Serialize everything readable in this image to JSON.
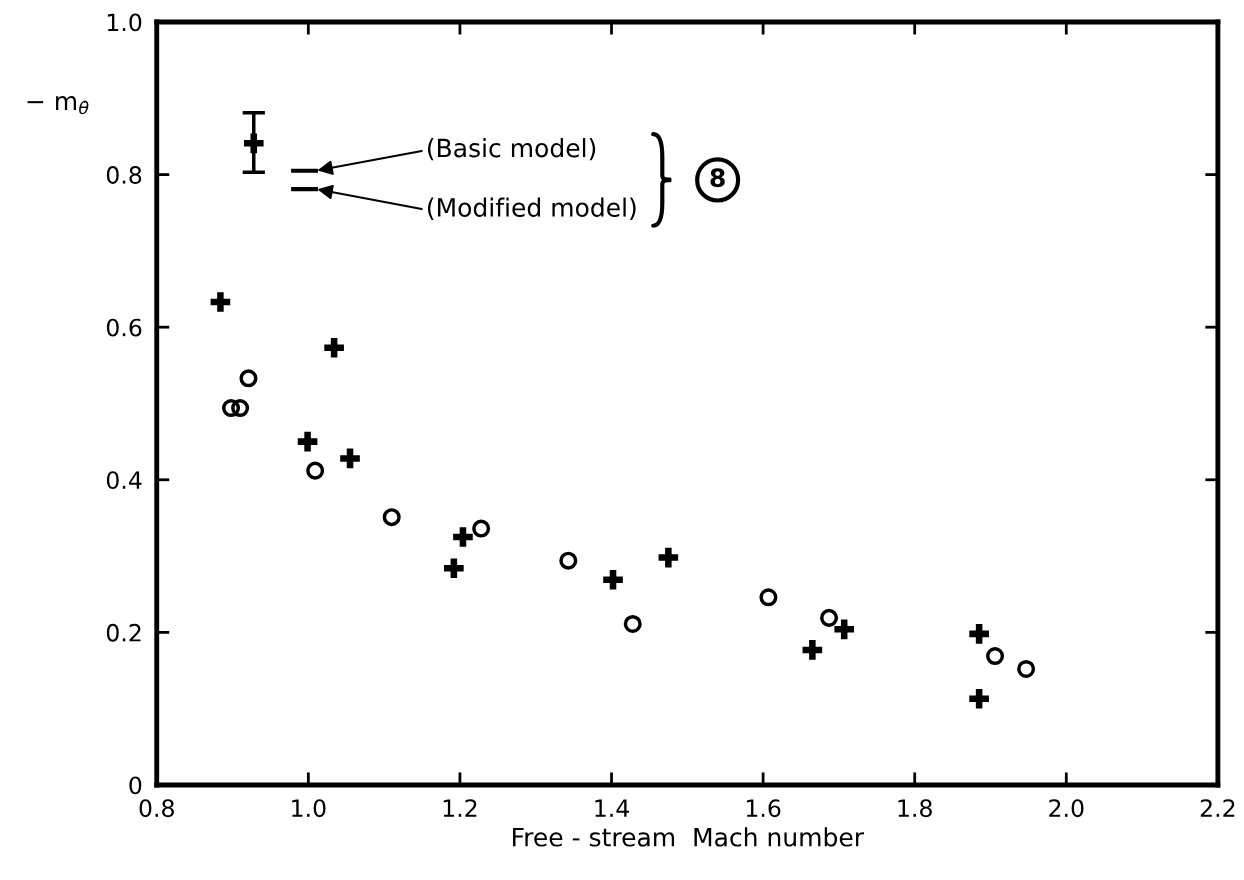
{
  "chart_data": {
    "type": "scatter",
    "xlabel": "Free - stream  Mach number",
    "ylabel": "− m$_{θ̇}$",
    "xlim": [
      0.8,
      2.2
    ],
    "ylim": [
      0,
      1.0
    ],
    "xticks": [
      0.8,
      {
        "value": 1,
        "label": "1.0"
      },
      1.2,
      1.4,
      1.6,
      1.8,
      {
        "value": 2,
        "label": "2.0"
      },
      2.2
    ],
    "yticks": [
      0,
      0.2,
      0.4,
      0.6,
      0.8,
      {
        "value": 1,
        "label": "1.0"
      }
    ],
    "grid": false,
    "series": [
      {
        "color": "#000000",
        "marker": "cross",
        "x": [
          0.928,
          0.884,
          1.034,
          0.999,
          1.055,
          1.204,
          1.192,
          1.402,
          1.475,
          1.707,
          1.665,
          1.885,
          1.885
        ],
        "values": [
          0.841,
          0.633,
          0.573,
          0.45,
          0.428,
          0.325,
          0.284,
          0.269,
          0.298,
          0.204,
          0.177,
          0.198,
          0.113
        ],
        "errors": [
          [
            0.803,
            0.881
          ],
          null,
          null,
          null,
          null,
          null,
          null,
          null,
          null,
          null,
          null,
          null,
          null
        ]
      },
      {
        "color": "#000000",
        "marker": "circle",
        "x": [
          0.921,
          0.898,
          0.91,
          1.009,
          1.11,
          1.228,
          1.343,
          1.428,
          1.607,
          1.687,
          1.906,
          1.947
        ],
        "values": [
          0.533,
          0.494,
          0.494,
          0.412,
          0.351,
          0.336,
          0.294,
          0.211,
          0.246,
          0.219,
          0.169,
          0.152
        ]
      },
      {
        "type": "line",
        "color": "#000000",
        "line_style": "solid",
        "marker": "none",
        "x": [
          0.98,
          1.01
        ],
        "values": [
          0.805,
          0.805
        ]
      },
      {
        "type": "line",
        "color": "#000000",
        "line_style": "solid",
        "marker": "none",
        "x": [
          0.98,
          1.01
        ],
        "values": [
          0.781,
          0.781
        ]
      }
    ],
    "annotations": [
      {
        "text": "(Basic model)",
        "x": 1.01,
        "y": 0.805
      },
      {
        "text": "(Modified model)",
        "x": 1.01,
        "y": 0.781
      },
      "8"
    ]
  }
}
